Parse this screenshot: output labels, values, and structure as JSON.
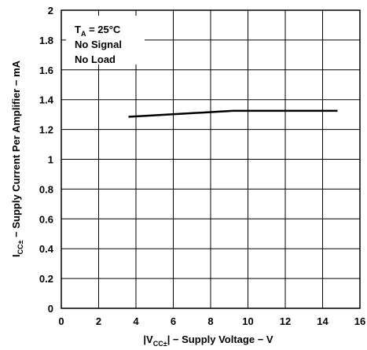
{
  "chart_data": {
    "type": "line",
    "xlim": [
      0,
      16
    ],
    "ylim": [
      0,
      2
    ],
    "x_ticks": [
      "0",
      "2",
      "4",
      "6",
      "8",
      "10",
      "12",
      "14",
      "16"
    ],
    "y_ticks": [
      "0",
      "0.2",
      "0.4",
      "0.6",
      "0.8",
      "1",
      "1.2",
      "1.4",
      "1.6",
      "1.8",
      "2"
    ],
    "grid": true,
    "xlabel": "|VCC±| − Supply Voltage − V",
    "xlabel_parts": {
      "pre": "|V",
      "sub": "CC±",
      "post": "| − Supply Voltage − V"
    },
    "ylabel": "ICC± − Supply Current Per Amplifier − mA",
    "ylabel_parts": {
      "pre": "I",
      "sub": "CC±",
      "post": " − Supply Current Per Amplifier − mA"
    },
    "annotation": {
      "line1_pre": "T",
      "line1_sub": "A",
      "line1_post": " = 25°C",
      "line2": "No Signal",
      "line3": "No Load"
    },
    "series": [
      {
        "x": [
          3.6,
          9.2,
          14.8
        ],
        "y": [
          1.285,
          1.325,
          1.325
        ],
        "color": "#000000"
      }
    ]
  }
}
